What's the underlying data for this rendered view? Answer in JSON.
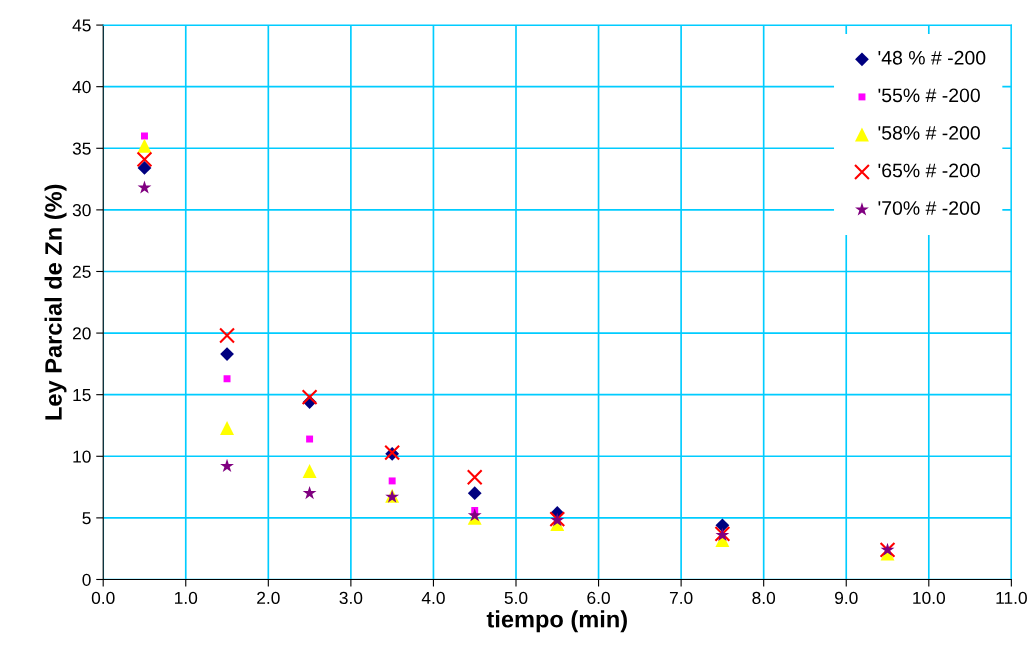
{
  "chart_data": {
    "type": "scatter",
    "xlabel": "tiempo (min)",
    "ylabel": "Ley Parcial de Zn (%)",
    "x": [
      0.5,
      1.5,
      2.5,
      3.5,
      4.5,
      5.5,
      7.5,
      9.5
    ],
    "series": [
      {
        "name": "'48 % # -200",
        "color": "#000080",
        "marker": "diamond",
        "values": [
          33.4,
          18.3,
          14.4,
          10.2,
          7.0,
          5.4,
          4.4,
          null
        ]
      },
      {
        "name": "'55% # -200",
        "color": "#ff00ff",
        "marker": "square",
        "values": [
          36.0,
          16.3,
          11.4,
          8.0,
          5.6,
          null,
          null,
          null
        ]
      },
      {
        "name": "'58% # -200",
        "color": "#ffff00",
        "marker": "triangle",
        "values": [
          35.2,
          12.3,
          8.8,
          6.8,
          5.0,
          4.5,
          3.2,
          2.1
        ]
      },
      {
        "name": "'65% # -200",
        "color": "#ff0000",
        "marker": "cross",
        "values": [
          34.1,
          19.8,
          14.8,
          10.3,
          8.3,
          4.9,
          3.7,
          2.4
        ]
      },
      {
        "name": "'70% # -200",
        "color": "#800080",
        "marker": "star",
        "values": [
          31.8,
          9.2,
          7.0,
          6.7,
          5.2,
          4.8,
          3.6,
          2.4
        ]
      }
    ],
    "xlim": [
      0,
      11
    ],
    "xticks": [
      {
        "value": 0,
        "label": "0.0"
      },
      {
        "value": 1,
        "label": "1.0"
      },
      {
        "value": 2,
        "label": "2.0"
      },
      {
        "value": 3,
        "label": "3.0"
      },
      {
        "value": 4,
        "label": "4.0"
      },
      {
        "value": 5,
        "label": "5.0"
      },
      {
        "value": 6,
        "label": "6.0"
      },
      {
        "value": 7,
        "label": "7.0"
      },
      {
        "value": 8,
        "label": "8.0"
      },
      {
        "value": 9,
        "label": "9.0"
      },
      {
        "value": 10,
        "label": "10.0"
      },
      {
        "value": 11,
        "label": "11.0"
      }
    ],
    "ylim": [
      0,
      45
    ],
    "yticks": [
      0,
      5,
      10,
      15,
      20,
      25,
      30,
      35,
      40,
      45
    ],
    "grid": true,
    "legend": "top right"
  }
}
